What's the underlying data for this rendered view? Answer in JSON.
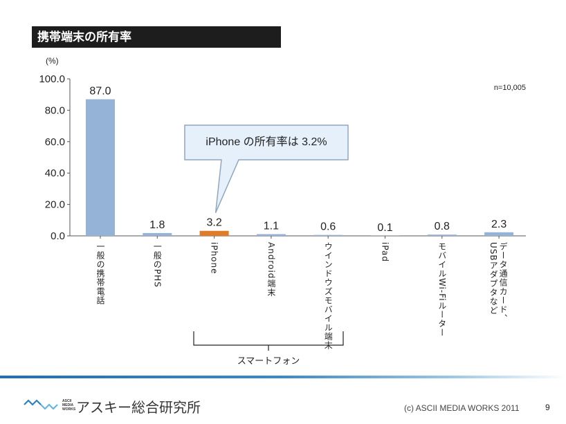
{
  "title": "携帯端末の所有率",
  "unit_label": "(%)",
  "sample_note": "n=10,005",
  "callout": "iPhone の所有率は 3.2%",
  "group_label": "スマートフォン",
  "footer": {
    "logo_small": [
      "ASCII",
      "MEDIA",
      "WORKS"
    ],
    "logo_name": "アスキー総合研究所",
    "copyright": "(c) ASCII MEDIA WORKS 2011",
    "page": "9"
  },
  "chart_data": {
    "type": "bar",
    "title": "携帯端末の所有率",
    "ylabel": "(%)",
    "ylim": [
      0,
      100
    ],
    "yticks": [
      "0.0",
      "20.0",
      "40.0",
      "60.0",
      "80.0",
      "100.0"
    ],
    "categories": [
      "一般の携帯電話",
      "一般のPHS",
      "iPhone",
      "Android端末",
      "ウインドウズモバイル端末",
      "iPad",
      "モバイルWi-Fiルーター",
      "データ通信カード、USBアダプタなど"
    ],
    "values": [
      87.0,
      1.8,
      3.2,
      1.1,
      0.6,
      0.1,
      0.8,
      2.3
    ],
    "value_labels": [
      "87.0",
      "1.8",
      "3.2",
      "1.1",
      "0.6",
      "0.1",
      "0.8",
      "2.3"
    ],
    "colors": {
      "default": "#95b3d7",
      "highlight": "#e07b28"
    },
    "highlight_index": 2,
    "grid": false,
    "annotation": "iPhone の所有率は 3.2%"
  }
}
